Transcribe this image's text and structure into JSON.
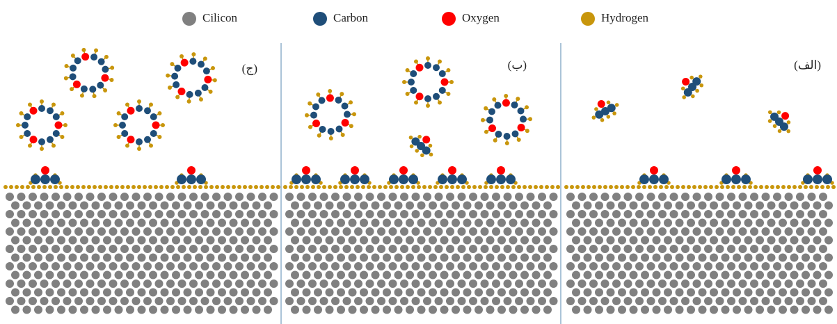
{
  "legend": {
    "items": [
      {
        "label": "Cilicon",
        "color": "#808080"
      },
      {
        "label": "Carbon",
        "color": "#1f4e79"
      },
      {
        "label": "Oxygen",
        "color": "#ff0000"
      },
      {
        "label": "Hydrogen",
        "color": "#c8960c"
      }
    ]
  },
  "panels": [
    {
      "label": "(ج)"
    },
    {
      "label": "(ب)"
    },
    {
      "label": "(الف)"
    }
  ]
}
